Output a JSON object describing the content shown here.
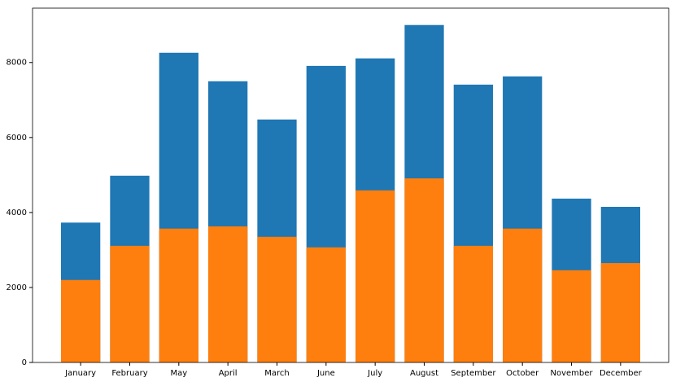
{
  "chart_data": {
    "type": "bar",
    "categories": [
      "January",
      "February",
      "May",
      "April",
      "March",
      "June",
      "July",
      "August",
      "September",
      "October",
      "November",
      "December"
    ],
    "series": [
      {
        "color": "#1f77b4",
        "values": [
          3730,
          4980,
          8260,
          7500,
          6480,
          7910,
          8110,
          9000,
          7410,
          7630,
          4370,
          4150
        ]
      },
      {
        "color": "#ff7f0e",
        "values": [
          2200,
          3110,
          3570,
          3630,
          3350,
          3070,
          4590,
          4910,
          3110,
          3570,
          2460,
          2650
        ]
      }
    ],
    "ylim": [
      0,
      9450
    ],
    "yticks": [
      0,
      2000,
      4000,
      6000,
      8000
    ],
    "grid": false
  }
}
